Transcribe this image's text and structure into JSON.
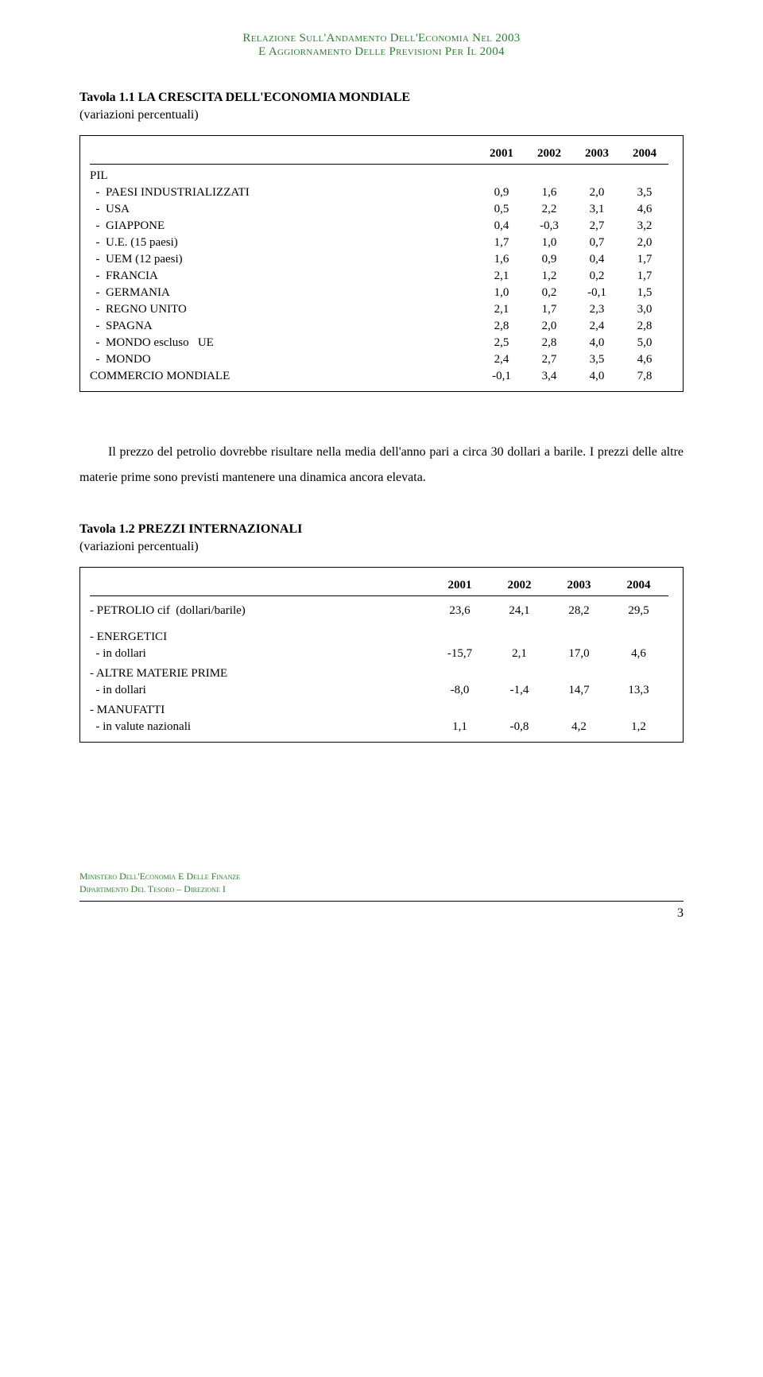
{
  "header": {
    "line1": "Relazione Sull'Andamento Dell'Economia Nel 2003",
    "line2": "E Aggiornamento Delle Previsioni Per Il 2004",
    "color": "#2e7d32"
  },
  "table1": {
    "title": "Tavola 1.1 LA CRESCITA DELL'ECONOMIA MONDIALE",
    "subtitle": "(variazioni percentuali)",
    "columns": [
      "",
      "2001",
      "2002",
      "2003",
      "2004"
    ],
    "rows": [
      {
        "label": "PIL",
        "values": [
          "",
          "",
          "",
          ""
        ],
        "section": true
      },
      {
        "label": "  -  PAESI INDUSTRIALIZZATI",
        "values": [
          "0,9",
          "1,6",
          "2,0",
          "3,5"
        ]
      },
      {
        "label": "  -  USA",
        "values": [
          "0,5",
          "2,2",
          "3,1",
          "4,6"
        ]
      },
      {
        "label": "  -  GIAPPONE",
        "values": [
          "0,4",
          "-0,3",
          "2,7",
          "3,2"
        ]
      },
      {
        "label": "  -  U.E. (15 paesi)",
        "values": [
          "1,7",
          "1,0",
          "0,7",
          "2,0"
        ]
      },
      {
        "label": "  -  UEM (12 paesi)",
        "values": [
          "1,6",
          "0,9",
          "0,4",
          "1,7"
        ]
      },
      {
        "label": "  -  FRANCIA",
        "values": [
          "2,1",
          "1,2",
          "0,2",
          "1,7"
        ]
      },
      {
        "label": "  -  GERMANIA",
        "values": [
          "1,0",
          "0,2",
          "-0,1",
          "1,5"
        ]
      },
      {
        "label": "  -  REGNO UNITO",
        "values": [
          "2,1",
          "1,7",
          "2,3",
          "3,0"
        ]
      },
      {
        "label": "  -  SPAGNA",
        "values": [
          "2,8",
          "2,0",
          "2,4",
          "2,8"
        ]
      },
      {
        "label": "  -  MONDO escluso   UE",
        "values": [
          "2,5",
          "2,8",
          "4,0",
          "5,0"
        ]
      },
      {
        "label": "  -  MONDO",
        "values": [
          "2,4",
          "2,7",
          "3,5",
          "4,6"
        ]
      },
      {
        "label": "COMMERCIO MONDIALE",
        "values": [
          "-0,1",
          "3,4",
          "4,0",
          "7,8"
        ]
      }
    ]
  },
  "paragraph": "Il prezzo del petrolio dovrebbe risultare nella media dell'anno pari a circa 30 dollari a barile. I prezzi delle altre materie prime sono previsti mantenere una dinamica ancora elevata.",
  "table2": {
    "title": "Tavola 1.2 PREZZI INTERNAZIONALI",
    "subtitle": "(variazioni percentuali)",
    "columns": [
      "",
      "2001",
      "2002",
      "2003",
      "2004"
    ],
    "rows": [
      {
        "label": "- PETROLIO cif  (dollari/barile)",
        "values": [
          "23,6",
          "24,1",
          "28,2",
          "29,5"
        ],
        "spaced": true
      },
      {
        "label": "- ENERGETICI",
        "values": [
          "",
          "",
          "",
          ""
        ],
        "section": true
      },
      {
        "label": "  - in dollari",
        "values": [
          "-15,7",
          "2,1",
          "17,0",
          "4,6"
        ]
      },
      {
        "label": "- ALTRE MATERIE PRIME",
        "values": [
          "",
          "",
          "",
          ""
        ],
        "section": true
      },
      {
        "label": "  - in dollari",
        "values": [
          "-8,0",
          "-1,4",
          "14,7",
          "13,3"
        ]
      },
      {
        "label": "- MANUFATTI",
        "values": [
          "",
          "",
          "",
          ""
        ],
        "section": true
      },
      {
        "label": "  - in valute nazionali",
        "values": [
          "1,1",
          "-0,8",
          "4,2",
          "1,2"
        ]
      }
    ]
  },
  "footer": {
    "line1": "Ministero Dell'Economia E Delle Finanze",
    "line2": "Dipartimento Del Tesoro – Direzione I",
    "color": "#2e7d32",
    "page_number": "3"
  }
}
